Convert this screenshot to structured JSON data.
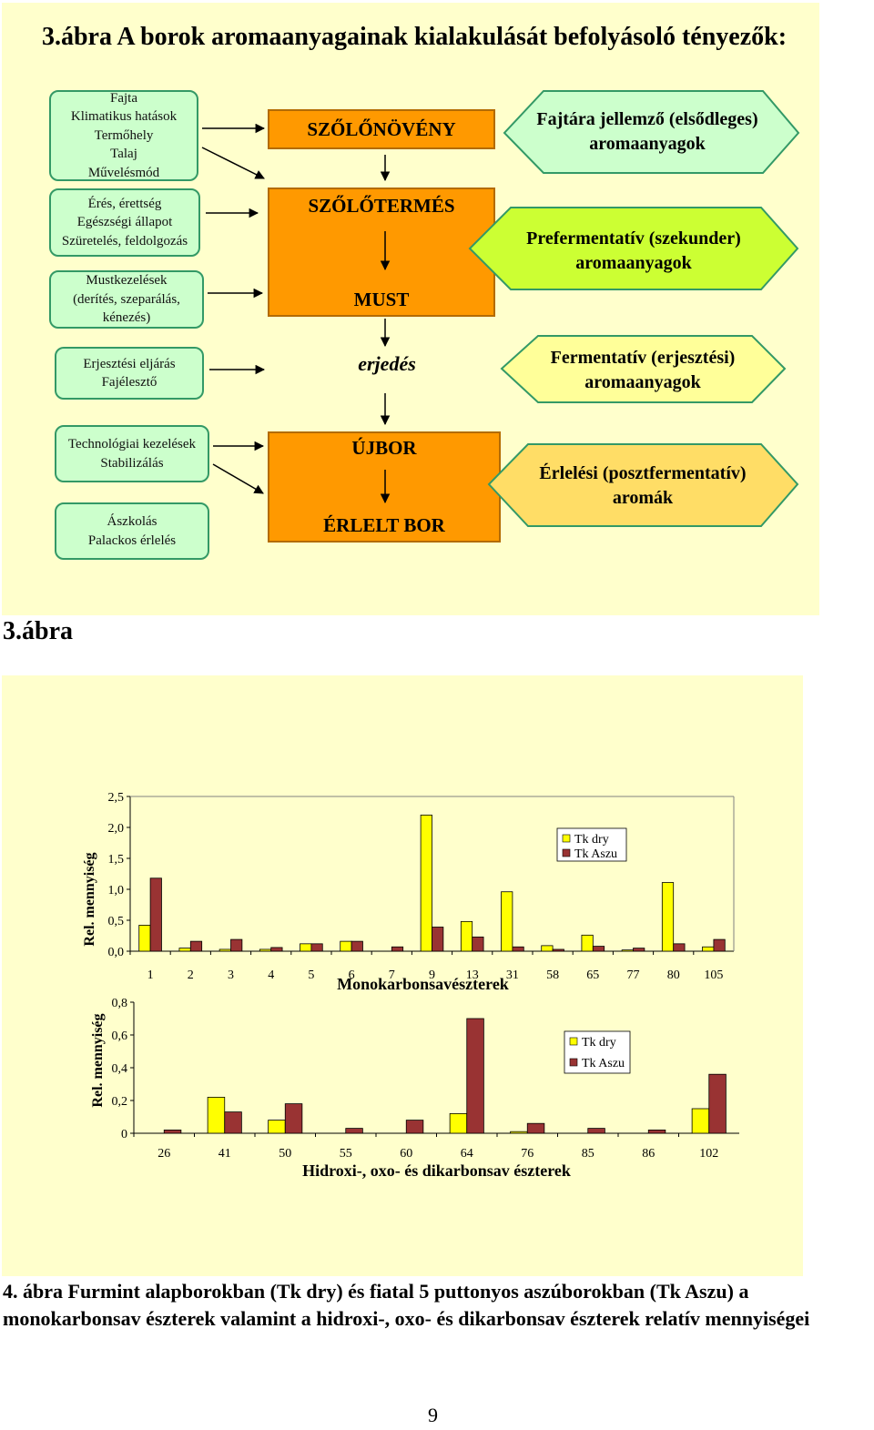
{
  "figure3": {
    "title": "3.ábra A borok aromaanyagainak kialakulását befolyásoló tényezők:",
    "factor_boxes": [
      [
        "Fajta",
        "Klimatikus hatások",
        "Termőhely",
        "Talaj",
        "Művelésmód"
      ],
      [
        "Érés, érettség",
        "Egészségi állapot",
        "Szüretelés, feldolgozás"
      ],
      [
        "Mustkezelések",
        "(derítés, szeparálás,",
        "kénezés)"
      ],
      [
        "Erjesztési eljárás",
        "Fajélesztő"
      ],
      [
        "Technológiai kezelések",
        "Stabilizálás"
      ],
      [
        "Ászkolás",
        "Palackos érlelés"
      ]
    ],
    "stages": [
      "SZŐLŐNÖVÉNY",
      "SZŐLŐTERMÉS",
      "MUST",
      "ÚJBOR",
      "ÉRLELT BOR"
    ],
    "process": "erjedés",
    "aroma_labels": [
      [
        "Fajtára jellemző (elsődleges)",
        "aromaanyagok"
      ],
      [
        "Prefermentatív (szekunder)",
        "aromaanyagok"
      ],
      [
        "Fermentatív (erjesztési)",
        "aromaanyagok"
      ],
      [
        "Érlelési (posztfermentatív)",
        "aromák"
      ]
    ],
    "colors": {
      "panel": "#ffffcc",
      "factor": "#ccffcc",
      "stage": "#ff9900",
      "aroma1": "#ccffcc",
      "aroma2": "#ccff33",
      "aroma3": "#ffff99",
      "aroma4": "#ffdd66"
    }
  },
  "section_label": "3.ábra",
  "chart_data": [
    {
      "type": "bar",
      "categories": [
        "1",
        "2",
        "3",
        "4",
        "5",
        "6",
        "7",
        "9",
        "13",
        "31",
        "58",
        "65",
        "77",
        "80",
        "105"
      ],
      "series": [
        {
          "name": "Tk dry",
          "color": "#ffff00",
          "values": [
            0.42,
            0.05,
            0.03,
            0.03,
            0.12,
            0.16,
            0.0,
            2.2,
            0.48,
            0.96,
            0.09,
            0.26,
            0.02,
            1.11,
            0.07
          ]
        },
        {
          "name": "Tk Aszu",
          "color": "#993333",
          "values": [
            1.18,
            0.16,
            0.19,
            0.06,
            0.12,
            0.16,
            0.07,
            0.39,
            0.23,
            0.07,
            0.03,
            0.08,
            0.05,
            0.12,
            0.19
          ]
        }
      ],
      "ylim": [
        0,
        2.5
      ],
      "yticks": [
        "0,0",
        "0,5",
        "1,0",
        "1,5",
        "2,0",
        "2,5"
      ],
      "xlabel": "Monokarbonsavészterek",
      "ylabel": "Rel. mennyiség",
      "legend": "top-right",
      "grid": false
    },
    {
      "type": "bar",
      "categories": [
        "26",
        "41",
        "50",
        "55",
        "60",
        "64",
        "76",
        "85",
        "86",
        "102"
      ],
      "series": [
        {
          "name": "Tk dry",
          "color": "#ffff00",
          "values": [
            0.0,
            0.22,
            0.08,
            0.0,
            0.0,
            0.12,
            0.01,
            0.0,
            0.0,
            0.15
          ]
        },
        {
          "name": "Tk Aszu",
          "color": "#993333",
          "values": [
            0.02,
            0.13,
            0.18,
            0.03,
            0.08,
            0.7,
            0.06,
            0.03,
            0.02,
            0.36
          ]
        }
      ],
      "ylim": [
        0,
        0.8
      ],
      "yticks": [
        "0",
        "0,2",
        "0,4",
        "0,6",
        "0,8"
      ],
      "xlabel": "Hidroxi-, oxo- és dikarbonsav észterek",
      "ylabel": "Rel. mennyiség",
      "legend": "right",
      "grid": false
    }
  ],
  "caption": "4. ábra Furmint alapborokban (Tk dry) és fiatal 5 puttonyos aszúborokban (Tk Aszu) a monokarbonsav észterek valamint a hidroxi-, oxo- és dikarbonsav észterek relatív mennyiségei",
  "page_number": "9"
}
